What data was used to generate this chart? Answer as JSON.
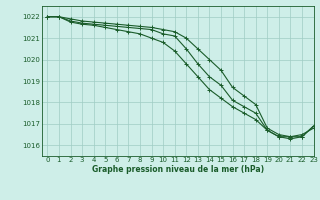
{
  "title": "Graphe pression niveau de la mer (hPa)",
  "background_color": "#ceeee8",
  "grid_color": "#a0ccc4",
  "line_color": "#1a5c2a",
  "xlim": [
    -0.5,
    23
  ],
  "ylim": [
    1015.5,
    1022.5
  ],
  "yticks": [
    1016,
    1017,
    1018,
    1019,
    1020,
    1021,
    1022
  ],
  "xticks": [
    0,
    1,
    2,
    3,
    4,
    5,
    6,
    7,
    8,
    9,
    10,
    11,
    12,
    13,
    14,
    15,
    16,
    17,
    18,
    19,
    20,
    21,
    22,
    23
  ],
  "series": [
    [
      1022.0,
      1022.0,
      1021.9,
      1021.8,
      1021.75,
      1021.7,
      1021.65,
      1021.6,
      1021.55,
      1021.5,
      1021.4,
      1021.3,
      1021.0,
      1020.5,
      1020.0,
      1019.5,
      1018.7,
      1018.3,
      1017.9,
      1016.8,
      1016.5,
      1016.4,
      1016.5,
      1016.8
    ],
    [
      1022.0,
      1022.0,
      1021.8,
      1021.7,
      1021.65,
      1021.6,
      1021.55,
      1021.5,
      1021.45,
      1021.4,
      1021.2,
      1021.1,
      1020.5,
      1019.8,
      1019.2,
      1018.8,
      1018.1,
      1017.8,
      1017.5,
      1016.7,
      1016.4,
      1016.4,
      1016.4,
      1016.9
    ],
    [
      1022.0,
      1022.0,
      1021.75,
      1021.65,
      1021.6,
      1021.5,
      1021.4,
      1021.3,
      1021.2,
      1021.0,
      1020.8,
      1020.4,
      1019.8,
      1019.2,
      1018.6,
      1018.2,
      1017.8,
      1017.5,
      1017.2,
      1016.7,
      1016.4,
      1016.3,
      1016.4,
      1016.9
    ]
  ]
}
